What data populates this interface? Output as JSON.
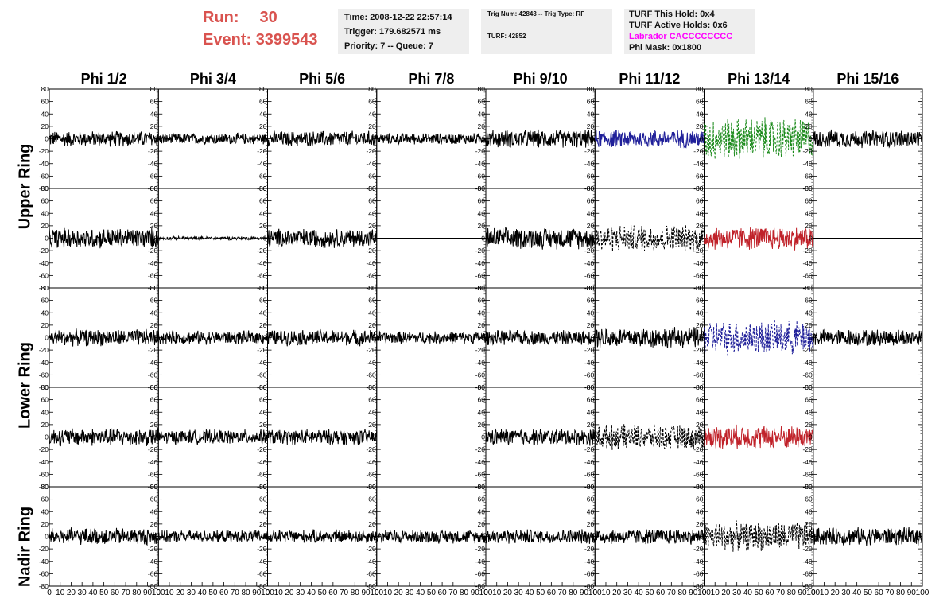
{
  "header": {
    "run_label": "Run:",
    "run_value": "30",
    "event_label": "Event:",
    "event_value": "3399543",
    "time": "Time: 2008-12-22 22:57:14",
    "trigger": "Trigger: 179.682571 ms",
    "priority": "Priority: 7 -- Queue: 7",
    "trig_num": "Trig Num: 42843 -- Trig Type: RF",
    "turf": "TURF: 42852",
    "turf_this_hold": "TURF This Hold: 0x4",
    "turf_active_holds": "TURF Active Holds: 0x6",
    "labrador": "Labrador CACCCCCCCC",
    "phi_mask": "Phi Mask: 0x1800"
  },
  "colors": {
    "run_text": "#d9534f",
    "labrador_text": "#ff00ff",
    "trace_default": "#000000",
    "trace_blue": "#1f1f99",
    "trace_green": "#1a8a1a",
    "trace_red": "#c0222a"
  },
  "chart_data": {
    "type": "line",
    "columns": [
      "Phi 1/2",
      "Phi 3/4",
      "Phi 5/6",
      "Phi 7/8",
      "Phi 9/10",
      "Phi 11/12",
      "Phi 13/14",
      "Phi 15/16"
    ],
    "row_labels": [
      "Upper Ring",
      "Lower Ring",
      "Nadir Ring"
    ],
    "ylim": [
      -80,
      80
    ],
    "xlim": [
      0,
      100
    ],
    "yticks": [
      "80",
      "60",
      "40",
      "20",
      "0",
      "-20",
      "-40",
      "-60",
      "-80"
    ],
    "xticks": [
      "0",
      "10",
      "20",
      "30",
      "40",
      "50",
      "60",
      "70",
      "80",
      "90",
      "100"
    ],
    "panels": [
      [
        {
          "amp": 14,
          "style": "solid",
          "color": "#000000"
        },
        {
          "amp": 10,
          "style": "solid",
          "color": "#000000"
        },
        {
          "amp": 14,
          "style": "solid",
          "color": "#000000"
        },
        {
          "amp": 10,
          "style": "solid",
          "color": "#000000"
        },
        {
          "amp": 16,
          "style": "solid",
          "color": "#000000"
        },
        {
          "amp": 16,
          "style": "solid",
          "color": "#1f1f99"
        },
        {
          "amp": 38,
          "style": "dashed",
          "color": "#1a8a1a"
        },
        {
          "amp": 16,
          "style": "solid",
          "color": "#000000"
        }
      ],
      [
        {
          "amp": 18,
          "style": "solid",
          "color": "#000000"
        },
        {
          "amp": 3,
          "style": "solid",
          "color": "#000000"
        },
        {
          "amp": 17,
          "style": "solid",
          "color": "#000000"
        },
        {
          "amp": 0,
          "style": "solid",
          "color": "#000000"
        },
        {
          "amp": 19,
          "style": "solid",
          "color": "#000000"
        },
        {
          "amp": 24,
          "style": "dashed",
          "color": "#000000"
        },
        {
          "amp": 21,
          "style": "solid",
          "color": "#c0222a"
        },
        {
          "amp": 0,
          "style": "solid",
          "color": "#000000"
        }
      ],
      [
        {
          "amp": 15,
          "style": "solid",
          "color": "#000000"
        },
        {
          "amp": 12,
          "style": "solid",
          "color": "#000000"
        },
        {
          "amp": 14,
          "style": "solid",
          "color": "#000000"
        },
        {
          "amp": 11,
          "style": "solid",
          "color": "#000000"
        },
        {
          "amp": 13,
          "style": "solid",
          "color": "#000000"
        },
        {
          "amp": 19,
          "style": "solid",
          "color": "#000000"
        },
        {
          "amp": 30,
          "style": "dashed",
          "color": "#1f1f99"
        },
        {
          "amp": 15,
          "style": "solid",
          "color": "#000000"
        }
      ],
      [
        {
          "amp": 16,
          "style": "solid",
          "color": "#000000"
        },
        {
          "amp": 13,
          "style": "solid",
          "color": "#000000"
        },
        {
          "amp": 14,
          "style": "solid",
          "color": "#000000"
        },
        {
          "amp": 0,
          "style": "solid",
          "color": "#000000"
        },
        {
          "amp": 15,
          "style": "solid",
          "color": "#000000"
        },
        {
          "amp": 22,
          "style": "dashed",
          "color": "#000000"
        },
        {
          "amp": 21,
          "style": "solid",
          "color": "#c0222a"
        },
        {
          "amp": 0,
          "style": "solid",
          "color": "#000000"
        }
      ],
      [
        {
          "amp": 15,
          "style": "solid",
          "color": "#000000"
        },
        {
          "amp": 11,
          "style": "solid",
          "color": "#000000"
        },
        {
          "amp": 12,
          "style": "solid",
          "color": "#000000"
        },
        {
          "amp": 12,
          "style": "solid",
          "color": "#000000"
        },
        {
          "amp": 13,
          "style": "solid",
          "color": "#000000"
        },
        {
          "amp": 14,
          "style": "solid",
          "color": "#000000"
        },
        {
          "amp": 26,
          "style": "dashed",
          "color": "#000000"
        },
        {
          "amp": 16,
          "style": "solid",
          "color": "#000000"
        }
      ]
    ]
  }
}
